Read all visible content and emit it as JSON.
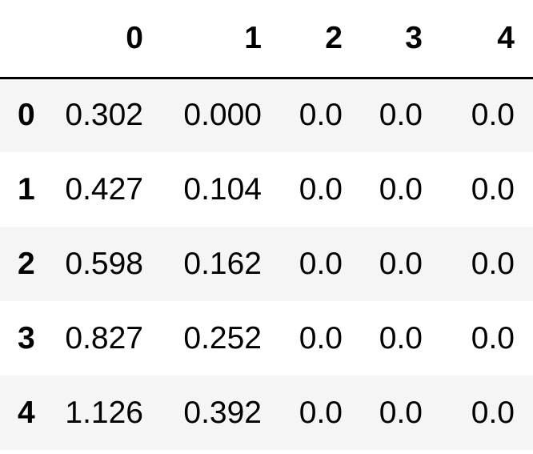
{
  "table": {
    "columns": [
      "",
      "0",
      "1",
      "2",
      "3",
      "4"
    ],
    "rows": [
      {
        "index": "0",
        "values": [
          "0.302",
          "0.000",
          "0.0",
          "0.0",
          "0.0"
        ]
      },
      {
        "index": "1",
        "values": [
          "0.427",
          "0.104",
          "0.0",
          "0.0",
          "0.0"
        ]
      },
      {
        "index": "2",
        "values": [
          "0.598",
          "0.162",
          "0.0",
          "0.0",
          "0.0"
        ]
      },
      {
        "index": "3",
        "values": [
          "0.827",
          "0.252",
          "0.0",
          "0.0",
          "0.0"
        ]
      },
      {
        "index": "4",
        "values": [
          "1.126",
          "0.392",
          "0.0",
          "0.0",
          "0.0"
        ]
      }
    ]
  }
}
